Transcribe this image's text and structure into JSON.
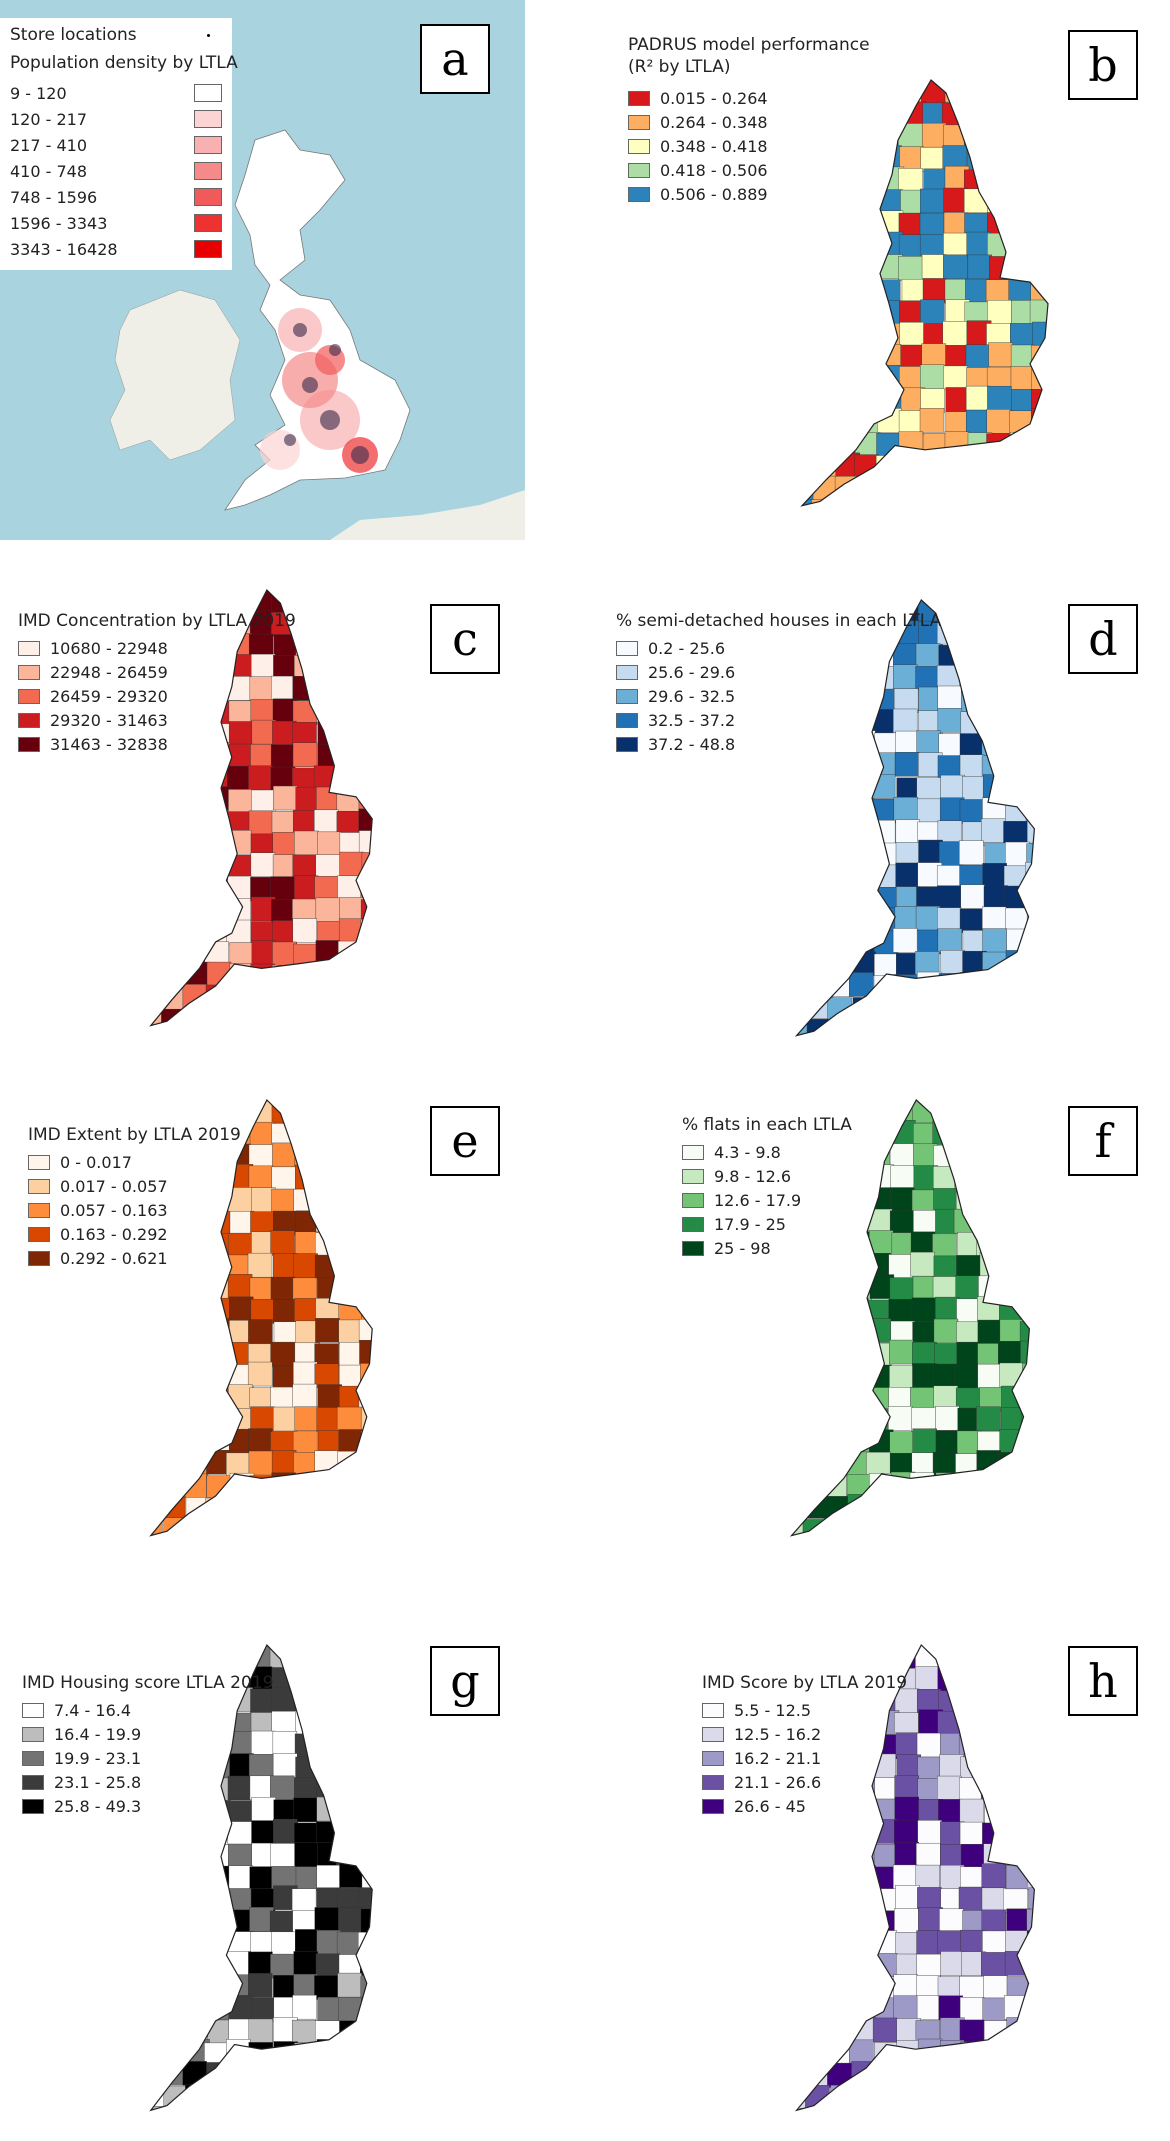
{
  "panels": {
    "a": {
      "letter": "a",
      "store_label": "Store locations",
      "legend_title": "Population density by LTLA",
      "classes": [
        {
          "label": "9 - 120",
          "color": "#ffffff"
        },
        {
          "label": "120 - 217",
          "color": "#fcd4d4"
        },
        {
          "label": "217 - 410",
          "color": "#f8b0b0"
        },
        {
          "label": "410 - 748",
          "color": "#f58a8a"
        },
        {
          "label": "748 - 1596",
          "color": "#f15a5a"
        },
        {
          "label": "1596 - 3343",
          "color": "#ee3232"
        },
        {
          "label": "3343 - 16428",
          "color": "#e80000"
        }
      ],
      "sea_color": "#a9d3df",
      "land_color": "#efefe8"
    },
    "b": {
      "letter": "b",
      "legend_title_1": "PADRUS model performance",
      "legend_title_2": "(R² by LTLA)",
      "classes": [
        {
          "label": "0.015 - 0.264",
          "color": "#d7191c"
        },
        {
          "label": "0.264 - 0.348",
          "color": "#fdae61"
        },
        {
          "label": "0.348 - 0.418",
          "color": "#ffffbf"
        },
        {
          "label": "0.418 - 0.506",
          "color": "#abdda4"
        },
        {
          "label": "0.506 - 0.889",
          "color": "#2b83ba"
        }
      ]
    },
    "c": {
      "letter": "c",
      "legend_title": "IMD Concentration by LTLA 2019",
      "classes": [
        {
          "label": "10680 - 22948",
          "color": "#fef0e8"
        },
        {
          "label": "22948 - 26459",
          "color": "#fbb59a"
        },
        {
          "label": "26459 - 29320",
          "color": "#f26a4f"
        },
        {
          "label": "29320 - 31463",
          "color": "#cb1d20"
        },
        {
          "label": "31463 - 32838",
          "color": "#67000d"
        }
      ]
    },
    "d": {
      "letter": "d",
      "legend_title": "% semi-detached houses in each LTLA",
      "classes": [
        {
          "label": "0.2 - 25.6",
          "color": "#f7fbff"
        },
        {
          "label": "25.6 - 29.6",
          "color": "#c6dbef"
        },
        {
          "label": "29.6 - 32.5",
          "color": "#6baed6"
        },
        {
          "label": "32.5 - 37.2",
          "color": "#2171b5"
        },
        {
          "label": "37.2 - 48.8",
          "color": "#08306b"
        }
      ]
    },
    "e": {
      "letter": "e",
      "legend_title": "IMD Extent by LTLA 2019",
      "classes": [
        {
          "label": "0 - 0.017",
          "color": "#fff5eb"
        },
        {
          "label": "0.017 - 0.057",
          "color": "#fdd0a2"
        },
        {
          "label": "0.057 - 0.163",
          "color": "#fd8d3c"
        },
        {
          "label": "0.163 - 0.292",
          "color": "#d94801"
        },
        {
          "label": "0.292 - 0.621",
          "color": "#7f2704"
        }
      ]
    },
    "f": {
      "letter": "f",
      "legend_title": "% flats in each LTLA",
      "classes": [
        {
          "label": "4.3 - 9.8",
          "color": "#f7fcf5"
        },
        {
          "label": "9.8 - 12.6",
          "color": "#c7e9c0"
        },
        {
          "label": "12.6 - 17.9",
          "color": "#74c476"
        },
        {
          "label": "17.9 - 25",
          "color": "#238b45"
        },
        {
          "label": "25 - 98",
          "color": "#00441b"
        }
      ]
    },
    "g": {
      "letter": "g",
      "legend_title": "IMD Housing score LTLA 2019",
      "classes": [
        {
          "label": "7.4 - 16.4",
          "color": "#ffffff"
        },
        {
          "label": "16.4 - 19.9",
          "color": "#bdbdbd"
        },
        {
          "label": "19.9 - 23.1",
          "color": "#737373"
        },
        {
          "label": "23.1 - 25.8",
          "color": "#3b3b3b"
        },
        {
          "label": "25.8 - 49.3",
          "color": "#000000"
        }
      ]
    },
    "h": {
      "letter": "h",
      "legend_title": "IMD Score by LTLA 2019",
      "classes": [
        {
          "label": "5.5 - 12.5",
          "color": "#fcfbfd"
        },
        {
          "label": "12.5 - 16.2",
          "color": "#dadaeb"
        },
        {
          "label": "16.2 - 21.1",
          "color": "#9e9ac8"
        },
        {
          "label": "21.1 - 26.6",
          "color": "#6a51a3"
        },
        {
          "label": "26.6 - 45",
          "color": "#3f007d"
        }
      ]
    }
  }
}
